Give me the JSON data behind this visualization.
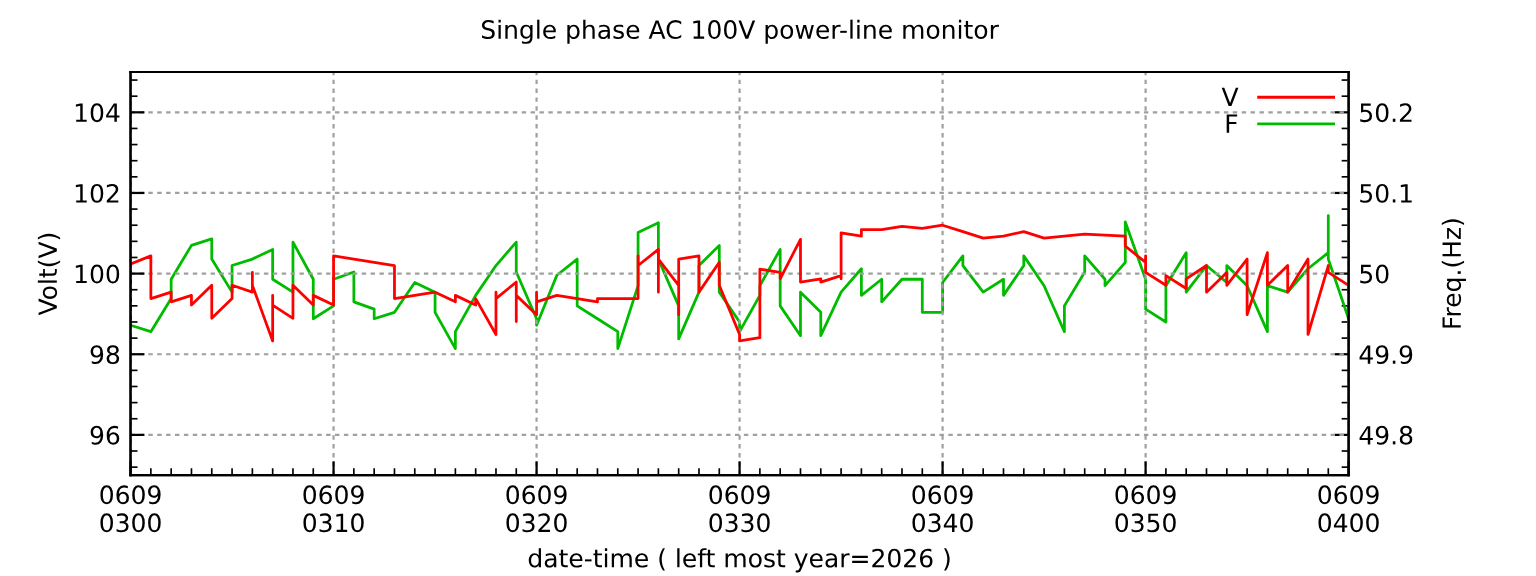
{
  "chart_data": {
    "type": "line",
    "title": "Single phase AC 100V power-line monitor",
    "xlabel": "date-time ( left most year=2026 )",
    "ylabel": "Volt(V)",
    "y2label": "Freq.(Hz)",
    "xlim": [
      "2026-06-09T03:00",
      "2026-06-09T04:00"
    ],
    "xticks": [
      {
        "value": "2026-06-09T03:00",
        "label": "0609\n0300"
      },
      {
        "value": "2026-06-09T03:10",
        "label": "0609\n0310"
      },
      {
        "value": "2026-06-09T03:20",
        "label": "0609\n0320"
      },
      {
        "value": "2026-06-09T03:30",
        "label": "0609\n0330"
      },
      {
        "value": "2026-06-09T03:40",
        "label": "0609\n0340"
      },
      {
        "value": "2026-06-09T03:50",
        "label": "0609\n0350"
      },
      {
        "value": "2026-06-09T04:00",
        "label": "0609\n0400"
      }
    ],
    "ylim": [
      95,
      105
    ],
    "yticks": [
      96,
      98,
      100,
      102,
      104
    ],
    "y2lim": [
      49.75,
      50.25
    ],
    "y2ticks": [
      49.8,
      49.9,
      50,
      50.1,
      50.2
    ],
    "grid": true,
    "legend": "top right",
    "line_style": "solid",
    "marker": "none",
    "series": [
      {
        "name": "V",
        "color": "#ff0000",
        "x": [
          "2026-06-09T03:00",
          "2026-06-09T03:01",
          "2026-06-09T03:01",
          "2026-06-09T03:02",
          "2026-06-09T03:02",
          "2026-06-09T03:03",
          "2026-06-09T03:03",
          "2026-06-09T03:04",
          "2026-06-09T03:04",
          "2026-06-09T03:05",
          "2026-06-09T03:05",
          "2026-06-09T03:06",
          "2026-06-09T03:06",
          "2026-06-09T03:06",
          "2026-06-09T03:07",
          "2026-06-09T03:07",
          "2026-06-09T03:07",
          "2026-06-09T03:08",
          "2026-06-09T03:08",
          "2026-06-09T03:09",
          "2026-06-09T03:09",
          "2026-06-09T03:10",
          "2026-06-09T03:10",
          "2026-06-09T03:10",
          "2026-06-09T03:11",
          "2026-06-09T03:12",
          "2026-06-09T03:13",
          "2026-06-09T03:13",
          "2026-06-09T03:13",
          "2026-06-09T03:14",
          "2026-06-09T03:15",
          "2026-06-09T03:16",
          "2026-06-09T03:16",
          "2026-06-09T03:17",
          "2026-06-09T03:17",
          "2026-06-09T03:18",
          "2026-06-09T03:18",
          "2026-06-09T03:18",
          "2026-06-09T03:19",
          "2026-06-09T03:19",
          "2026-06-09T03:19",
          "2026-06-09T03:20",
          "2026-06-09T03:20",
          "2026-06-09T03:20",
          "2026-06-09T03:21",
          "2026-06-09T03:22",
          "2026-06-09T03:23",
          "2026-06-09T03:23",
          "2026-06-09T03:24",
          "2026-06-09T03:24",
          "2026-06-09T03:25",
          "2026-06-09T03:25",
          "2026-06-09T03:25",
          "2026-06-09T03:26",
          "2026-06-09T03:26",
          "2026-06-09T03:26",
          "2026-06-09T03:27",
          "2026-06-09T03:27",
          "2026-06-09T03:27",
          "2026-06-09T03:27",
          "2026-06-09T03:28",
          "2026-06-09T03:28",
          "2026-06-09T03:29",
          "2026-06-09T03:29",
          "2026-06-09T03:29",
          "2026-06-09T03:30",
          "2026-06-09T03:30",
          "2026-06-09T03:31",
          "2026-06-09T03:31",
          "2026-06-09T03:31",
          "2026-06-09T03:32",
          "2026-06-09T03:32",
          "2026-06-09T03:33",
          "2026-06-09T03:33",
          "2026-06-09T03:33",
          "2026-06-09T03:34",
          "2026-06-09T03:34",
          "2026-06-09T03:35",
          "2026-06-09T03:35",
          "2026-06-09T03:35",
          "2026-06-09T03:36",
          "2026-06-09T03:36",
          "2026-06-09T03:37",
          "2026-06-09T03:38",
          "2026-06-09T03:39",
          "2026-06-09T03:40",
          "2026-06-09T03:41",
          "2026-06-09T03:42",
          "2026-06-09T03:43",
          "2026-06-09T03:44",
          "2026-06-09T03:45",
          "2026-06-09T03:46",
          "2026-06-09T03:47",
          "2026-06-09T03:49",
          "2026-06-09T03:49",
          "2026-06-09T03:50",
          "2026-06-09T03:50",
          "2026-06-09T03:50",
          "2026-06-09T03:51",
          "2026-06-09T03:51",
          "2026-06-09T03:52",
          "2026-06-09T03:52",
          "2026-06-09T03:53",
          "2026-06-09T03:53",
          "2026-06-09T03:54",
          "2026-06-09T03:54",
          "2026-06-09T03:55",
          "2026-06-09T03:55",
          "2026-06-09T03:55",
          "2026-06-09T03:56",
          "2026-06-09T03:56",
          "2026-06-09T03:57",
          "2026-06-09T03:57",
          "2026-06-09T03:58",
          "2026-06-09T03:58",
          "2026-06-09T03:58",
          "2026-06-09T03:59",
          "2026-06-09T03:59",
          "2026-06-09T04:00",
          "2026-06-09T04:00"
        ],
        "values": [
          100.24,
          100.44,
          99.38,
          99.54,
          99.3,
          99.46,
          99.22,
          99.71,
          98.89,
          99.38,
          99.71,
          99.54,
          100.03,
          99.71,
          98.33,
          99.46,
          99.22,
          98.89,
          99.71,
          99.22,
          99.46,
          99.22,
          99.54,
          100.44,
          100.36,
          100.28,
          100.2,
          99.71,
          99.38,
          99.46,
          99.54,
          99.3,
          99.46,
          99.22,
          99.38,
          98.49,
          99.54,
          99.38,
          99.79,
          98.81,
          99.46,
          98.98,
          99.54,
          99.3,
          99.46,
          99.38,
          99.3,
          99.38,
          99.38,
          99.38,
          99.38,
          100.44,
          100.2,
          100.6,
          99.54,
          100.36,
          99.71,
          98.98,
          99.06,
          100.36,
          100.44,
          99.54,
          100.28,
          100.2,
          99.71,
          98.49,
          98.33,
          98.41,
          99.87,
          100.11,
          100.03,
          99.87,
          100.85,
          100.2,
          99.79,
          99.87,
          99.79,
          99.95,
          99.87,
          101.01,
          100.93,
          101.09,
          101.09,
          101.17,
          101.12,
          101.2,
          101.04,
          100.88,
          100.93,
          101.04,
          100.88,
          100.93,
          100.98,
          100.93,
          100.68,
          100.28,
          100.44,
          100.03,
          99.71,
          99.95,
          99.63,
          99.87,
          100.2,
          99.54,
          100.03,
          99.71,
          100.36,
          99.54,
          98.98,
          100.52,
          99.71,
          100.2,
          99.54,
          100.36,
          99.63,
          98.49,
          100.2,
          100.03,
          99.71,
          99.54
        ]
      },
      {
        "name": "F",
        "color": "#00bb00",
        "axis": "y2",
        "x": [
          "2026-06-09T03:00",
          "2026-06-09T03:00",
          "2026-06-09T03:01",
          "2026-06-09T03:02",
          "2026-06-09T03:02",
          "2026-06-09T03:03",
          "2026-06-09T03:04",
          "2026-06-09T03:04",
          "2026-06-09T03:05",
          "2026-06-09T03:05",
          "2026-06-09T03:06",
          "2026-06-09T03:07",
          "2026-06-09T03:07",
          "2026-06-09T03:08",
          "2026-06-09T03:08",
          "2026-06-09T03:09",
          "2026-06-09T03:09",
          "2026-06-09T03:10",
          "2026-06-09T03:10",
          "2026-06-09T03:11",
          "2026-06-09T03:11",
          "2026-06-09T03:12",
          "2026-06-09T03:12",
          "2026-06-09T03:13",
          "2026-06-09T03:14",
          "2026-06-09T03:15",
          "2026-06-09T03:15",
          "2026-06-09T03:16",
          "2026-06-09T03:16",
          "2026-06-09T03:17",
          "2026-06-09T03:18",
          "2026-06-09T03:19",
          "2026-06-09T03:19",
          "2026-06-09T03:20",
          "2026-06-09T03:20",
          "2026-06-09T03:21",
          "2026-06-09T03:22",
          "2026-06-09T03:22",
          "2026-06-09T03:23",
          "2026-06-09T03:24",
          "2026-06-09T03:24",
          "2026-06-09T03:25",
          "2026-06-09T03:25",
          "2026-06-09T03:26",
          "2026-06-09T03:26",
          "2026-06-09T03:27",
          "2026-06-09T03:27",
          "2026-06-09T03:28",
          "2026-06-09T03:28",
          "2026-06-09T03:29",
          "2026-06-09T03:29",
          "2026-06-09T03:30",
          "2026-06-09T03:30",
          "2026-06-09T03:31",
          "2026-06-09T03:31",
          "2026-06-09T03:32",
          "2026-06-09T03:32",
          "2026-06-09T03:32",
          "2026-06-09T03:33",
          "2026-06-09T03:33",
          "2026-06-09T03:34",
          "2026-06-09T03:34",
          "2026-06-09T03:35",
          "2026-06-09T03:36",
          "2026-06-09T03:36",
          "2026-06-09T03:37",
          "2026-06-09T03:37",
          "2026-06-09T03:38",
          "2026-06-09T03:39",
          "2026-06-09T03:39",
          "2026-06-09T03:40",
          "2026-06-09T03:40",
          "2026-06-09T03:41",
          "2026-06-09T03:41",
          "2026-06-09T03:42",
          "2026-06-09T03:43",
          "2026-06-09T03:43",
          "2026-06-09T03:44",
          "2026-06-09T03:44",
          "2026-06-09T03:45",
          "2026-06-09T03:46",
          "2026-06-09T03:46",
          "2026-06-09T03:47",
          "2026-06-09T03:47",
          "2026-06-09T03:48",
          "2026-06-09T03:48",
          "2026-06-09T03:49",
          "2026-06-09T03:49",
          "2026-06-09T03:50",
          "2026-06-09T03:50",
          "2026-06-09T03:51",
          "2026-06-09T03:51",
          "2026-06-09T03:52",
          "2026-06-09T03:52",
          "2026-06-09T03:53",
          "2026-06-09T03:54",
          "2026-06-09T03:54",
          "2026-06-09T03:55",
          "2026-06-09T03:56",
          "2026-06-09T03:56",
          "2026-06-09T03:57",
          "2026-06-09T03:58",
          "2026-06-09T03:59",
          "2026-06-09T03:59",
          "2026-06-09T03:59",
          "2026-06-09T04:00",
          "2026-06-09T04:00"
        ],
        "values": [
          50.01,
          49.936,
          49.928,
          49.969,
          49.993,
          50.035,
          50.043,
          50.018,
          49.977,
          50.01,
          50.018,
          50.03,
          49.993,
          49.977,
          50.039,
          49.993,
          49.944,
          49.96,
          49.993,
          50.002,
          49.965,
          49.956,
          49.944,
          49.952,
          49.989,
          49.977,
          49.952,
          49.907,
          49.928,
          49.973,
          50.01,
          50.039,
          50.002,
          49.944,
          49.936,
          49.998,
          50.018,
          49.96,
          49.944,
          49.928,
          49.907,
          49.985,
          50.051,
          50.063,
          50.018,
          49.96,
          49.919,
          49.977,
          50.01,
          50.035,
          49.977,
          49.94,
          49.928,
          49.973,
          49.985,
          50.03,
          50.01,
          49.96,
          49.923,
          49.977,
          49.952,
          49.923,
          49.977,
          50.006,
          49.973,
          49.993,
          49.965,
          49.993,
          49.993,
          49.952,
          49.952,
          49.989,
          50.022,
          50.01,
          49.977,
          49.993,
          49.973,
          50.01,
          50.022,
          49.985,
          49.928,
          49.96,
          50.002,
          50.022,
          49.993,
          49.985,
          50.014,
          50.064,
          49.993,
          49.956,
          49.94,
          49.985,
          50.026,
          49.977,
          50.01,
          49.989,
          50.01,
          49.985,
          49.928,
          49.985,
          49.977,
          50.006,
          50.026,
          50.072,
          50.018,
          49.944,
          49.952
        ]
      }
    ]
  }
}
